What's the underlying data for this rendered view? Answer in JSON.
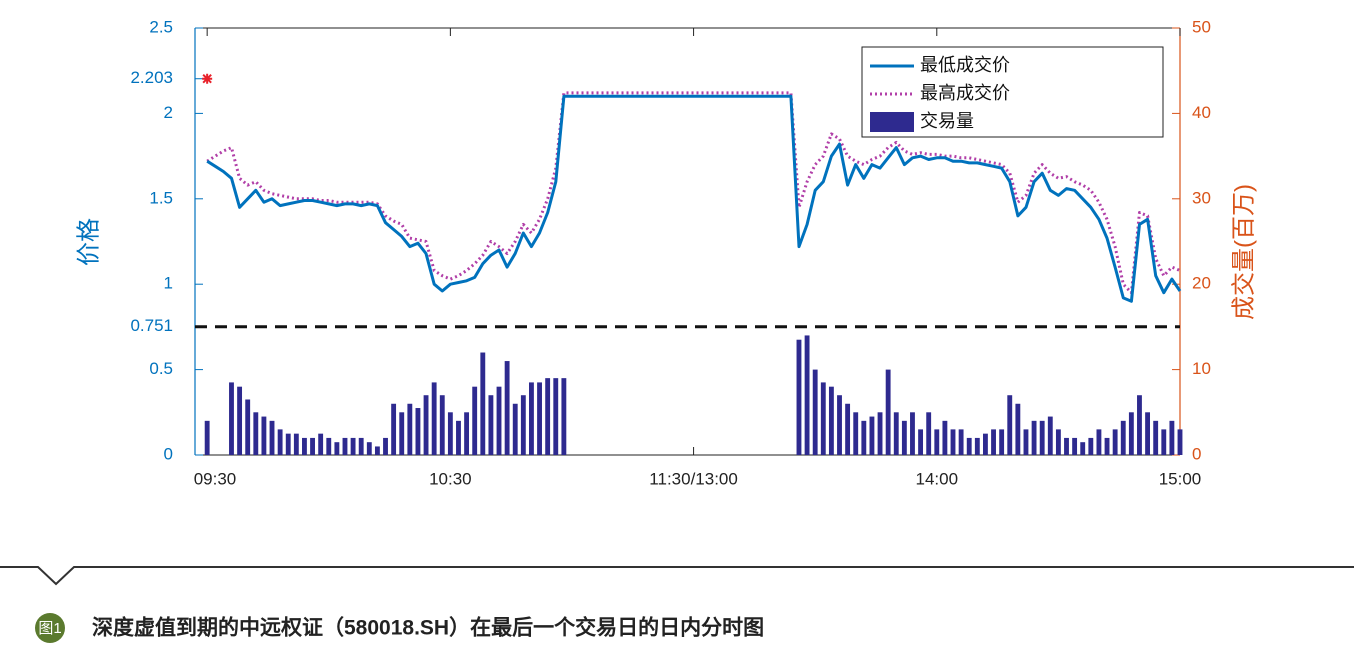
{
  "chart_data": {
    "type": "line",
    "ylabel": "价格",
    "y2label": "成交量(百万)",
    "x": [
      0,
      2,
      4,
      6,
      8,
      10,
      12,
      14,
      16,
      18,
      20,
      22,
      24,
      26,
      28,
      30,
      32,
      34,
      36,
      38,
      40,
      42,
      44,
      46,
      48,
      50,
      52,
      54,
      56,
      58,
      60,
      62,
      64,
      66,
      68,
      70,
      72,
      74,
      76,
      78,
      80,
      82,
      84,
      86,
      88,
      90,
      92,
      94,
      96,
      98,
      100,
      102,
      104,
      106,
      108,
      110,
      112,
      114,
      116,
      118,
      120,
      122,
      124,
      126,
      128,
      130,
      132,
      134,
      136,
      138,
      140,
      142,
      144,
      146,
      148,
      150,
      152,
      154,
      156,
      158,
      160,
      162,
      164,
      166,
      168,
      170,
      172,
      174,
      176,
      178,
      180,
      182,
      184,
      186,
      188,
      190,
      192,
      194,
      196,
      198,
      200,
      202,
      204,
      206,
      208,
      210,
      212,
      214,
      216,
      218,
      220,
      222,
      224,
      226,
      228,
      230,
      232,
      234,
      236,
      238,
      240
    ],
    "xlim": [
      -3,
      240
    ],
    "xticks": [
      {
        "value": 0,
        "label": "09:30"
      },
      {
        "value": 60,
        "label": "10:30"
      },
      {
        "value": 120,
        "label": "11:30/13:00"
      },
      {
        "value": 180,
        "label": "14:00"
      },
      {
        "value": 240,
        "label": "15:00"
      }
    ],
    "ylim": [
      0,
      2.5
    ],
    "yticks": [
      0,
      0.5,
      0.751,
      1,
      1.5,
      2,
      2.203,
      2.5
    ],
    "ycolor": "#0072bd",
    "y2lim": [
      0,
      50
    ],
    "y2ticks": [
      0,
      10,
      20,
      30,
      40,
      50
    ],
    "y2color": "#d95319",
    "reference_line": 0.751,
    "marker": {
      "x": 0,
      "y": 2.203,
      "color": "#e8212a"
    },
    "legend": "top-right",
    "series": [
      {
        "name": "最低成交价",
        "type": "line",
        "style": "solid",
        "color": "#0072bd",
        "values": [
          1.72,
          1.69,
          1.66,
          1.62,
          1.45,
          1.5,
          1.55,
          1.48,
          1.5,
          1.46,
          1.47,
          1.48,
          1.49,
          1.49,
          1.48,
          1.47,
          1.46,
          1.47,
          1.47,
          1.46,
          1.47,
          1.46,
          1.36,
          1.32,
          1.28,
          1.22,
          1.24,
          1.18,
          1.0,
          0.96,
          1.0,
          1.01,
          1.02,
          1.04,
          1.12,
          1.17,
          1.2,
          1.1,
          1.18,
          1.3,
          1.22,
          1.3,
          1.42,
          1.6,
          2.1,
          2.1,
          2.1,
          2.1,
          2.1,
          2.1,
          2.1,
          2.1,
          2.1,
          2.1,
          2.1,
          2.1,
          2.1,
          2.1,
          2.1,
          2.1,
          2.1,
          2.1,
          2.1,
          2.1,
          2.1,
          2.1,
          2.1,
          2.1,
          2.1,
          2.1,
          2.1,
          2.1,
          2.1,
          1.22,
          1.35,
          1.55,
          1.6,
          1.75,
          1.82,
          1.58,
          1.7,
          1.62,
          1.7,
          1.68,
          1.74,
          1.8,
          1.7,
          1.74,
          1.75,
          1.73,
          1.74,
          1.74,
          1.72,
          1.72,
          1.71,
          1.71,
          1.7,
          1.69,
          1.68,
          1.6,
          1.4,
          1.45,
          1.6,
          1.65,
          1.55,
          1.52,
          1.56,
          1.55,
          1.5,
          1.45,
          1.38,
          1.27,
          1.1,
          0.92,
          0.9,
          1.35,
          1.38,
          1.05,
          0.95,
          1.03,
          0.96
        ]
      },
      {
        "name": "最高成交价",
        "type": "line",
        "style": "dotted",
        "color": "#b13fa8",
        "values": [
          1.72,
          1.75,
          1.78,
          1.8,
          1.62,
          1.58,
          1.6,
          1.55,
          1.53,
          1.52,
          1.51,
          1.5,
          1.5,
          1.5,
          1.49,
          1.49,
          1.48,
          1.48,
          1.48,
          1.48,
          1.48,
          1.47,
          1.4,
          1.37,
          1.35,
          1.27,
          1.26,
          1.25,
          1.08,
          1.05,
          1.03,
          1.05,
          1.08,
          1.12,
          1.17,
          1.25,
          1.22,
          1.18,
          1.25,
          1.35,
          1.3,
          1.38,
          1.5,
          1.68,
          2.12,
          2.12,
          2.12,
          2.12,
          2.12,
          2.12,
          2.12,
          2.12,
          2.12,
          2.12,
          2.12,
          2.12,
          2.12,
          2.12,
          2.12,
          2.12,
          2.12,
          2.12,
          2.12,
          2.12,
          2.12,
          2.12,
          2.12,
          2.12,
          2.12,
          2.12,
          2.12,
          2.12,
          2.12,
          1.45,
          1.6,
          1.7,
          1.75,
          1.88,
          1.85,
          1.75,
          1.72,
          1.7,
          1.73,
          1.75,
          1.8,
          1.83,
          1.78,
          1.76,
          1.77,
          1.76,
          1.76,
          1.75,
          1.75,
          1.74,
          1.74,
          1.73,
          1.72,
          1.71,
          1.7,
          1.65,
          1.48,
          1.52,
          1.65,
          1.7,
          1.65,
          1.62,
          1.63,
          1.6,
          1.58,
          1.55,
          1.48,
          1.38,
          1.22,
          1.0,
          0.95,
          1.42,
          1.4,
          1.15,
          1.05,
          1.1,
          1.08
        ]
      },
      {
        "name": "交易量",
        "type": "bar",
        "axis": "y2",
        "color": "#2e2a8f",
        "values": [
          4,
          null,
          null,
          8.5,
          8,
          6.5,
          5,
          4.5,
          4,
          3,
          2.5,
          2.5,
          2,
          2,
          2.5,
          2,
          1.5,
          2,
          2,
          2,
          1.5,
          1,
          2,
          6,
          5,
          6,
          5.5,
          7,
          8.5,
          7,
          5,
          4,
          5,
          8,
          12,
          7,
          8,
          11,
          6,
          7,
          8.5,
          8.5,
          9,
          9,
          9,
          null,
          null,
          null,
          null,
          null,
          null,
          null,
          null,
          null,
          null,
          null,
          null,
          null,
          null,
          null,
          null,
          null,
          null,
          null,
          null,
          null,
          null,
          null,
          null,
          null,
          null,
          null,
          null,
          13.5,
          14,
          10,
          8.5,
          8,
          7,
          6,
          5,
          4,
          4.5,
          5,
          10,
          5,
          4,
          5,
          3,
          5,
          3,
          4,
          3,
          3,
          2,
          2,
          2.5,
          3,
          3,
          7,
          6,
          3,
          4,
          4,
          4.5,
          3,
          2,
          2,
          1.5,
          2,
          3,
          2,
          3,
          4,
          5,
          7,
          5,
          4,
          3,
          4,
          3
        ]
      }
    ]
  },
  "figure": {
    "label": "图1",
    "caption": "深度虚值到期的中远权证（580018.SH）在最后一个交易日的日内分时图"
  }
}
